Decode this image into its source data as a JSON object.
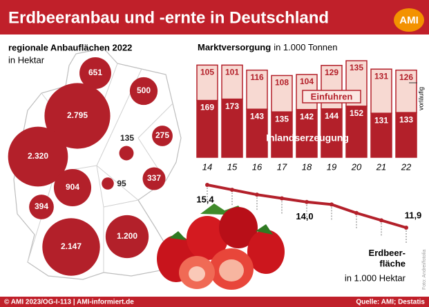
{
  "header": {
    "title": "Erdbeeranbau und -ernte in Deutschland",
    "logo": "AMI"
  },
  "chart_data": [
    {
      "type": "bubble-map",
      "title": "regionale Anbauflächen 2022",
      "subtitle": "in Hektar",
      "values": [
        651,
        500,
        2795,
        135,
        275,
        2320,
        95,
        337,
        904,
        394,
        1200,
        2147
      ],
      "value_labels": [
        "651",
        "500",
        "2.795",
        "135",
        "275",
        "2.320",
        "95",
        "337",
        "904",
        "394",
        "1.200",
        "2.147"
      ],
      "color": "#b3202a"
    },
    {
      "type": "bar",
      "title": "Marktversorgung",
      "subtitle": "in 1.000 Tonnen",
      "categories": [
        "14",
        "15",
        "16",
        "17",
        "18",
        "19",
        "20",
        "21",
        "22"
      ],
      "series": [
        {
          "name": "Inlandserzeugung",
          "color": "#b3202a",
          "values": [
            169,
            173,
            143,
            135,
            142,
            144,
            152,
            131,
            133
          ]
        },
        {
          "name": "Einfuhren",
          "color": "#f7d9d2",
          "values": [
            105,
            101,
            116,
            108,
            104,
            129,
            135,
            131,
            126
          ]
        }
      ],
      "annotation": "vorläufig"
    },
    {
      "type": "line",
      "title": "Erdbeer-\nfläche",
      "subtitle": "in 1.000 Hektar",
      "categories": [
        "14",
        "15",
        "16",
        "17",
        "18",
        "19",
        "20",
        "21",
        "22"
      ],
      "values": [
        15.4,
        15.0,
        14.6,
        14.3,
        14.0,
        13.8,
        13.1,
        12.5,
        11.9
      ],
      "value_labels": [
        "15,4",
        null,
        null,
        null,
        "14,0",
        null,
        null,
        null,
        "11,9"
      ],
      "color": "#b3202a"
    }
  ],
  "footer": {
    "left": "© AMI 2023/OG-I-113 | AMI-informiert.de",
    "right": "Quelle: AMI; Destatis",
    "credit": "Foto: Andrei/fotolia"
  }
}
